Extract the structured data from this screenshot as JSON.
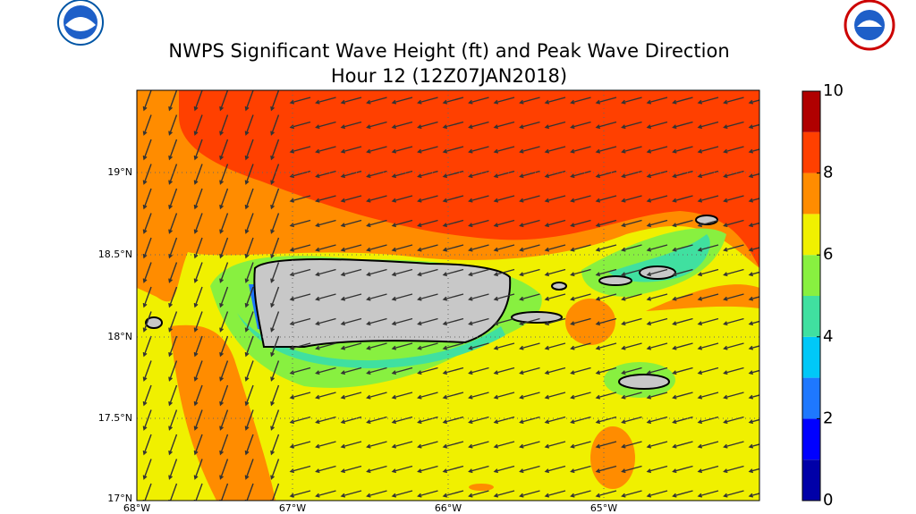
{
  "header": {
    "title": "NWPS Significant Wave Height (ft) and Peak Wave Direction",
    "subtitle": "Hour 12 (12Z07JAN2018)"
  },
  "map": {
    "lat_labels": [
      "19°N",
      "18.5°N",
      "18°N",
      "17.5°N",
      "17°N"
    ],
    "lon_labels": [
      "68°W",
      "67°W",
      "66°W",
      "65°W"
    ]
  },
  "colorbar": {
    "range": [
      0,
      10
    ],
    "ticks": [
      0,
      2,
      4,
      6,
      8,
      10
    ],
    "colors": [
      "#0000a8",
      "#0000ff",
      "#1e78ff",
      "#00c8f8",
      "#40e0a0",
      "#88f040",
      "#f0f000",
      "#ff8c00",
      "#ff4000",
      "#b00000"
    ]
  }
}
